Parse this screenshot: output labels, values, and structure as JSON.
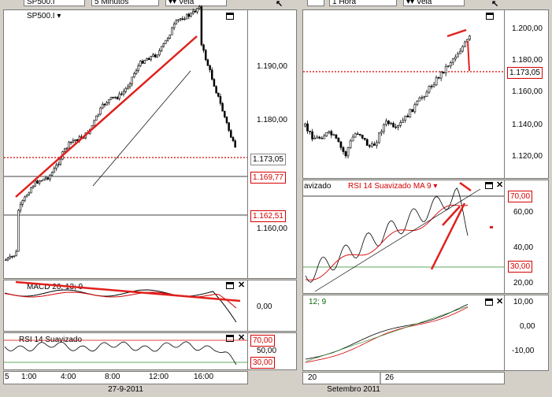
{
  "left": {
    "toolbar": {
      "symbol": "SP500.I",
      "interval": "5 Minutos",
      "mode": "Vela"
    },
    "price_panel": {
      "title": "SP500.I",
      "y_labels": [
        "1.190,00",
        "1.180,00",
        "1.160,00"
      ],
      "last_price": "1.173,05",
      "level_1": "1.169,77",
      "level_2": "1.162,51"
    },
    "macd_panel": {
      "title": "MACD 26; 13; 9",
      "zero_label": "0,00"
    },
    "rsi_panel": {
      "title": "RSI 14 Suavizado",
      "upper": "70,00",
      "mid": "50,00",
      "lower": "30,00"
    },
    "x_ticks": [
      "5",
      "1:00",
      "4:00",
      "8:00",
      "12:00",
      "16:00"
    ],
    "date_label": "27-9-2011"
  },
  "right": {
    "toolbar": {
      "symbol": "",
      "interval": "1 Hora",
      "mode": "Vela"
    },
    "price_panel": {
      "y_labels": [
        "1.200,00",
        "1.180,00",
        "1.160,00",
        "1.140,00",
        "1.120,00"
      ],
      "last_price": "1.173,05"
    },
    "rsi_panel": {
      "title_left": "avizado",
      "title_main": "RSI 14 Suavizado MA 9",
      "y_labels": [
        "60,00",
        "40,00",
        "20,00"
      ],
      "upper": "70,00",
      "lower": "30,00"
    },
    "osc_panel": {
      "title": "12; 9",
      "y_labels": [
        "10,00",
        "0,00",
        "-10,00"
      ]
    },
    "x_ticks": [
      "20",
      "26"
    ],
    "date_label": "Setembro 2011"
  },
  "colors": {
    "annotation": "#e0201c",
    "candle_up": "#ffffff",
    "candle_down": "#000000",
    "level_line": "#d40000",
    "rsi_ma": "#d40000"
  }
}
